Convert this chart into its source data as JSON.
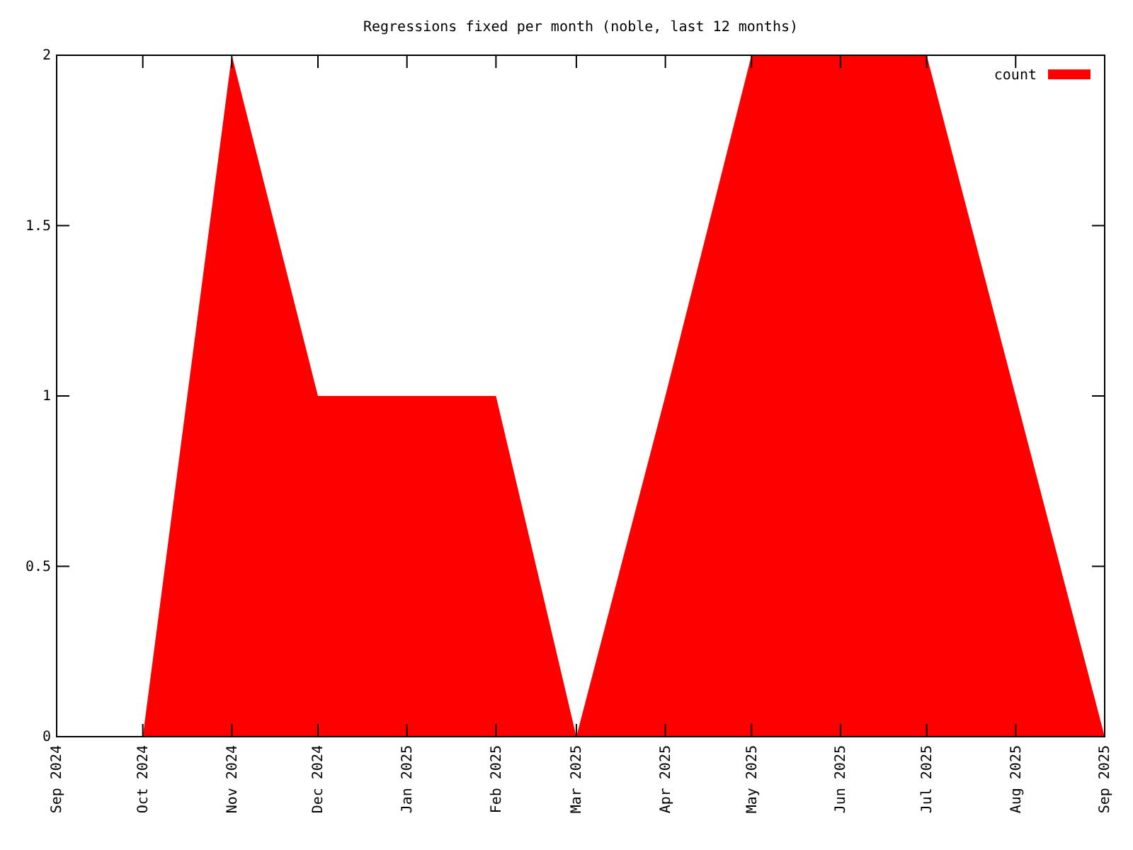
{
  "chart_data": {
    "type": "area",
    "title": "Regressions fixed per month (noble, last 12 months)",
    "x": [
      "2024-10",
      "2024-11",
      "2024-12",
      "2025-01",
      "2025-02",
      "2025-03",
      "2025-04",
      "2025-05",
      "2025-06",
      "2025-07",
      "2025-08",
      "2025-09"
    ],
    "series": [
      {
        "name": "count",
        "color": "#ff0000",
        "values": [
          0,
          2,
          1,
          1,
          1,
          0,
          1,
          2,
          2,
          2,
          1,
          0
        ]
      }
    ],
    "xlim": [
      "2024-09",
      "2025-09"
    ],
    "xticks": [
      {
        "value": "2024-09",
        "label": "Sep 2024"
      },
      {
        "value": "2024-10",
        "label": "Oct 2024"
      },
      {
        "value": "2024-11",
        "label": "Nov 2024"
      },
      {
        "value": "2024-12",
        "label": "Dec 2024"
      },
      {
        "value": "2025-01",
        "label": "Jan 2025"
      },
      {
        "value": "2025-02",
        "label": "Feb 2025"
      },
      {
        "value": "2025-03",
        "label": "Mar 2025"
      },
      {
        "value": "2025-04",
        "label": "Apr 2025"
      },
      {
        "value": "2025-05",
        "label": "May 2025"
      },
      {
        "value": "2025-06",
        "label": "Jun 2025"
      },
      {
        "value": "2025-07",
        "label": "Jul 2025"
      },
      {
        "value": "2025-08",
        "label": "Aug 2025"
      },
      {
        "value": "2025-09",
        "label": "Sep 2025"
      }
    ],
    "ylim": [
      0,
      2
    ],
    "yticks": [
      0,
      0.5,
      1,
      1.5,
      2
    ],
    "grid": false,
    "legend": "top right"
  }
}
